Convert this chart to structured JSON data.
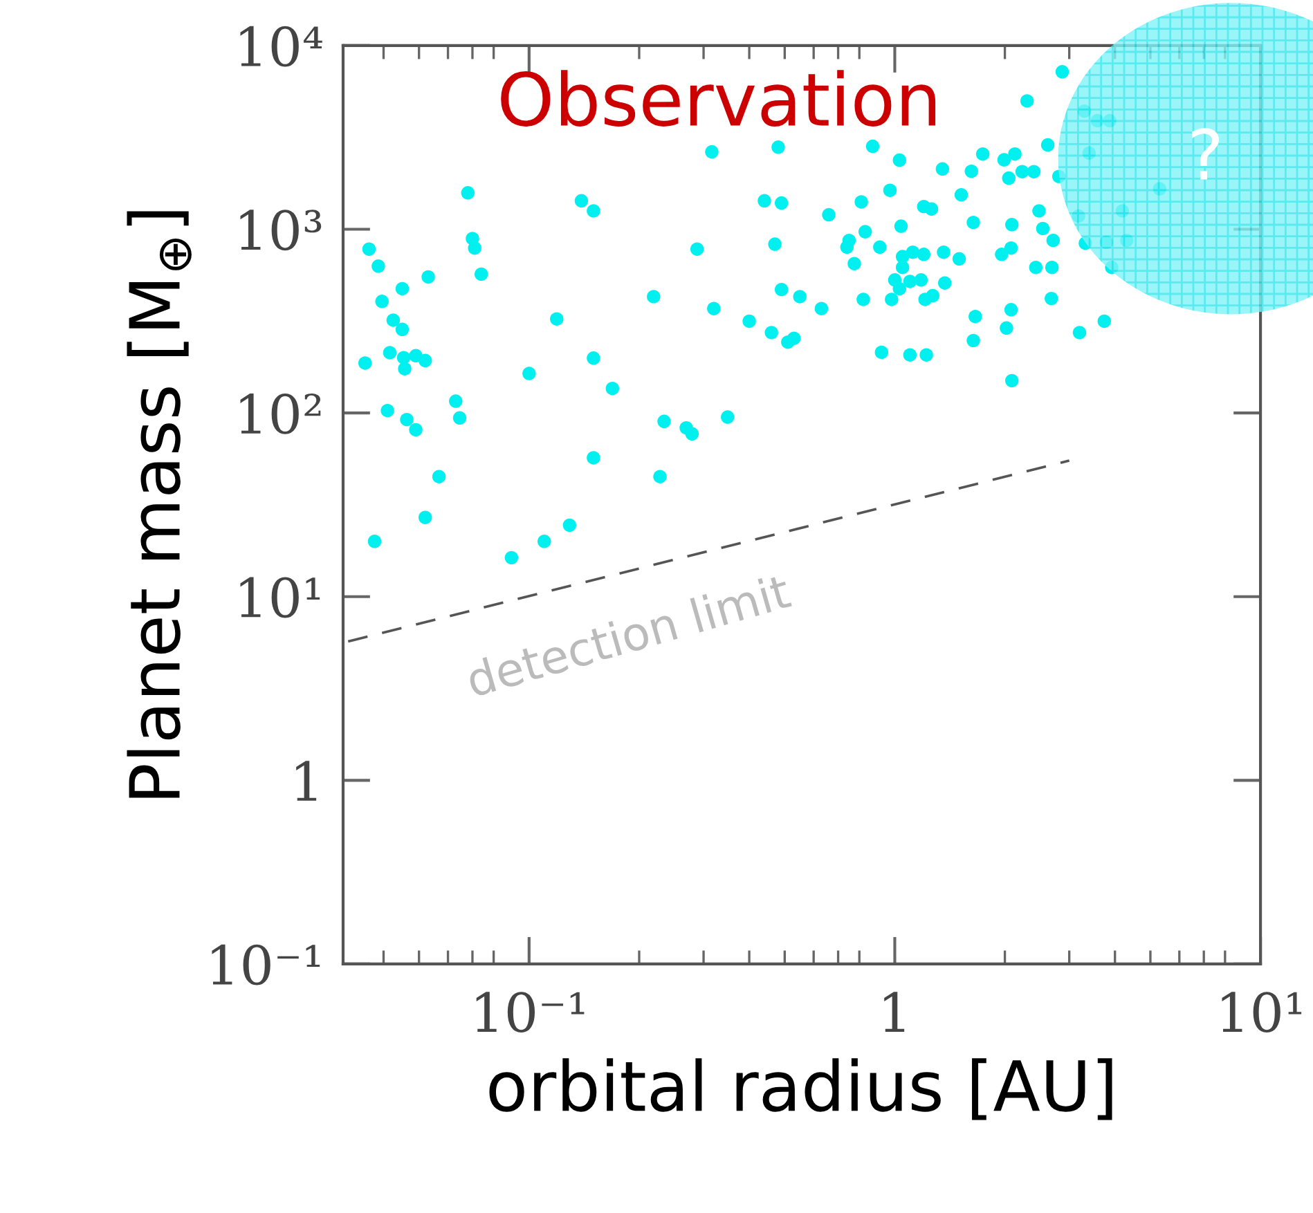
{
  "chart_data": {
    "type": "scatter",
    "title": "Observation",
    "xlabel": "orbital radius [AU]",
    "ylabel": "Planet mass [M$_{⊕}$]",
    "annotations": [
      "detection limit",
      "?"
    ],
    "log": "xy",
    "xlim": [
      0.031,
      10
    ],
    "ylim": [
      0.1,
      10000
    ],
    "xticks": [
      {
        "value": 0.1,
        "label": "10⁻¹"
      },
      1,
      {
        "value": 10,
        "label": "10¹"
      }
    ],
    "yticks": [
      {
        "value": 0.1,
        "label": "10⁻¹"
      },
      1,
      {
        "value": 10,
        "label": "10¹"
      },
      {
        "value": 100,
        "label": "10²"
      },
      {
        "value": 1000,
        "label": "10³"
      },
      {
        "value": 10000,
        "label": "10⁴"
      }
    ],
    "grid": false,
    "legend": false,
    "marker": "circle",
    "series": [
      {
        "color": "#00f0f0",
        "x": [
          0.068,
          0.139,
          0.15,
          0.07,
          0.071,
          0.0365,
          0.0387,
          0.074,
          0.053,
          0.045,
          0.219,
          0.0396,
          0.0425,
          0.045,
          0.119,
          0.0416,
          0.0454,
          0.049,
          0.052,
          0.0356,
          0.0457,
          0.15,
          0.1,
          0.169,
          0.063,
          0.041,
          0.0646,
          0.0463,
          0.049,
          0.234,
          0.15,
          0.0567,
          0.228,
          0.052,
          0.129,
          0.0378,
          0.11,
          0.0895,
          0.316,
          0.48,
          0.87,
          1.03,
          1.35,
          1.62,
          1.74,
          0.97,
          1.52,
          0.44,
          0.49,
          0.66,
          0.81,
          1.2,
          1.26,
          1.64,
          1.04,
          0.288,
          0.47,
          0.75,
          0.83,
          0.74,
          0.91,
          0.775,
          1.05,
          1.12,
          1.2,
          1.36,
          1.5,
          1.05,
          1.0,
          1.1,
          1.18,
          1.37,
          1.03,
          0.49,
          0.55,
          0.63,
          0.82,
          0.98,
          1.21,
          1.27,
          0.32,
          0.4,
          0.46,
          0.51,
          0.53,
          1.66,
          1.64,
          0.92,
          1.1,
          1.22,
          0.269,
          0.279,
          0.349,
          2.87,
          2.3,
          3.3,
          3.58,
          3.87,
          2.62,
          1.99,
          2.13,
          3.4,
          2.05,
          2.23,
          2.4,
          2.81,
          5.3,
          2.09,
          2.48,
          3.18,
          4.19,
          2.54,
          2.71,
          3.32,
          3.79,
          4.31,
          1.96,
          2.08,
          2.43,
          2.69,
          3.92,
          2.68,
          2.08,
          2.02,
          3.2,
          3.74,
          2.09
        ],
        "values": [
          1580,
          1430,
          1260,
          890,
          790,
          780,
          630,
          570,
          550,
          475,
          430,
          405,
          320,
          285,
          325,
          213,
          200,
          205,
          193,
          187,
          174,
          199,
          164,
          136,
          116,
          103,
          94,
          92,
          81,
          90,
          57,
          45,
          45,
          27,
          24.5,
          20,
          20,
          16.3,
          2640,
          2800,
          2830,
          2380,
          2130,
          2070,
          2570,
          1630,
          1540,
          1430,
          1390,
          1200,
          1410,
          1330,
          1290,
          1090,
          1040,
          780,
          830,
          870,
          970,
          800,
          800,
          650,
          710,
          750,
          730,
          750,
          690,
          620,
          530,
          520,
          530,
          510,
          475,
          470,
          430,
          370,
          415,
          415,
          415,
          435,
          370,
          316,
          274,
          243,
          255,
          335,
          248,
          214,
          207,
          207,
          83,
          77,
          95,
          7200,
          5000,
          4400,
          3900,
          3900,
          2880,
          2390,
          2570,
          2600,
          1900,
          2060,
          2060,
          1940,
          1660,
          1060,
          1260,
          1180,
          1260,
          1010,
          870,
          840,
          850,
          870,
          730,
          790,
          620,
          620,
          620,
          420,
          365,
          290,
          274,
          316,
          150
        ]
      },
      {
        "type": "line",
        "line_style": "dashed",
        "marker": "none",
        "color": "#555555",
        "x": [
          0.032,
          3.0
        ],
        "values": [
          5.7,
          55
        ]
      }
    ]
  }
}
